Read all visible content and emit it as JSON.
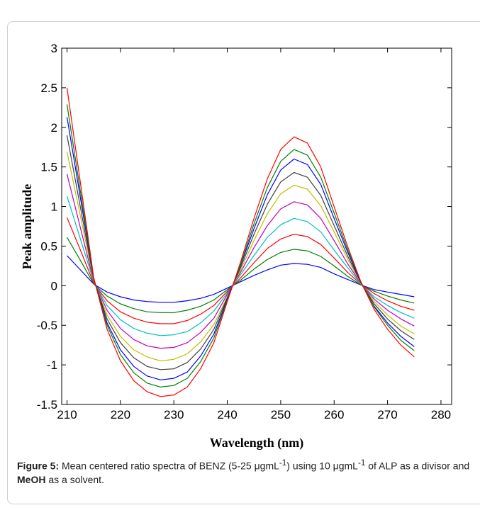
{
  "chart_data": {
    "type": "line",
    "x_label": "Wavelength (nm)",
    "y_label": "Peak amplitude",
    "x": [
      210,
      212.5,
      215,
      217.5,
      220,
      222.5,
      225,
      227.5,
      230,
      232.5,
      235,
      237.5,
      240,
      242.5,
      245,
      247.5,
      250,
      252.5,
      255,
      257.5,
      260,
      262.5,
      265,
      267.5,
      270,
      272.5,
      275
    ],
    "xlim": [
      209,
      282
    ],
    "xticks": [
      210,
      220,
      230,
      240,
      250,
      260,
      270,
      280
    ],
    "ylim": [
      -1.5,
      3
    ],
    "yticks": [
      -1.5,
      -1,
      -0.5,
      0,
      0.5,
      1,
      1.5,
      2,
      2.5,
      3
    ],
    "series": [
      {
        "color": "#0000ff",
        "values": [
          0.38,
          0.2,
          0.02,
          -0.08,
          -0.14,
          -0.18,
          -0.2,
          -0.21,
          -0.21,
          -0.19,
          -0.16,
          -0.11,
          -0.03,
          0.05,
          0.13,
          0.2,
          0.26,
          0.28,
          0.27,
          0.23,
          0.15,
          0.08,
          0.01,
          -0.05,
          -0.08,
          -0.11,
          -0.14
        ]
      },
      {
        "color": "#008000",
        "values": [
          0.61,
          0.32,
          0.02,
          -0.13,
          -0.23,
          -0.29,
          -0.33,
          -0.34,
          -0.34,
          -0.31,
          -0.26,
          -0.18,
          -0.05,
          0.07,
          0.21,
          0.33,
          0.42,
          0.46,
          0.44,
          0.37,
          0.25,
          0.12,
          0.01,
          -0.07,
          -0.13,
          -0.18,
          -0.22
        ]
      },
      {
        "color": "#ff0000",
        "values": [
          0.86,
          0.45,
          0.03,
          -0.19,
          -0.33,
          -0.41,
          -0.46,
          -0.48,
          -0.48,
          -0.44,
          -0.36,
          -0.25,
          -0.07,
          0.1,
          0.29,
          0.47,
          0.59,
          0.65,
          0.62,
          0.52,
          0.35,
          0.17,
          0.02,
          -0.1,
          -0.19,
          -0.26,
          -0.31
        ]
      },
      {
        "color": "#00bfbf",
        "values": [
          1.13,
          0.59,
          0.05,
          -0.25,
          -0.43,
          -0.54,
          -0.6,
          -0.63,
          -0.62,
          -0.58,
          -0.47,
          -0.32,
          -0.09,
          0.14,
          0.38,
          0.61,
          0.77,
          0.85,
          0.81,
          0.68,
          0.45,
          0.23,
          0.02,
          -0.14,
          -0.25,
          -0.34,
          -0.41
        ]
      },
      {
        "color": "#bf00bf",
        "values": [
          1.41,
          0.73,
          0.06,
          -0.31,
          -0.54,
          -0.68,
          -0.76,
          -0.79,
          -0.78,
          -0.72,
          -0.59,
          -0.41,
          -0.11,
          0.17,
          0.48,
          0.76,
          0.97,
          1.06,
          1.02,
          0.85,
          0.57,
          0.28,
          0.03,
          -0.17,
          -0.31,
          -0.42,
          -0.51
        ]
      },
      {
        "color": "#bfbf00",
        "values": [
          1.69,
          0.88,
          0.07,
          -0.37,
          -0.64,
          -0.81,
          -0.9,
          -0.95,
          -0.93,
          -0.86,
          -0.71,
          -0.49,
          -0.14,
          0.2,
          0.57,
          0.91,
          1.16,
          1.27,
          1.22,
          1.01,
          0.68,
          0.34,
          0.03,
          -0.2,
          -0.37,
          -0.51,
          -0.61
        ]
      },
      {
        "color": "#404040",
        "values": [
          1.9,
          0.99,
          0.08,
          -0.42,
          -0.72,
          -0.91,
          -1.02,
          -1.06,
          -1.05,
          -0.97,
          -0.8,
          -0.55,
          -0.15,
          0.23,
          0.65,
          1.03,
          1.31,
          1.43,
          1.37,
          1.14,
          0.76,
          0.38,
          0.04,
          -0.23,
          -0.42,
          -0.57,
          -0.68
        ]
      },
      {
        "color": "#0000ff",
        "values": [
          2.13,
          1.11,
          0.09,
          -0.47,
          -0.81,
          -1.02,
          -1.14,
          -1.19,
          -1.17,
          -1.09,
          -0.89,
          -0.61,
          -0.17,
          0.26,
          0.72,
          1.15,
          1.46,
          1.6,
          1.53,
          1.28,
          0.85,
          0.43,
          0.04,
          -0.26,
          -0.47,
          -0.64,
          -0.77
        ]
      },
      {
        "color": "#008000",
        "values": [
          2.29,
          1.19,
          0.09,
          -0.5,
          -0.87,
          -1.1,
          -1.23,
          -1.28,
          -1.26,
          -1.17,
          -0.96,
          -0.66,
          -0.18,
          0.27,
          0.78,
          1.24,
          1.57,
          1.72,
          1.65,
          1.37,
          0.92,
          0.46,
          0.05,
          -0.27,
          -0.5,
          -0.69,
          -0.82
        ]
      },
      {
        "color": "#ff0000",
        "values": [
          2.5,
          1.3,
          0.1,
          -0.55,
          -0.95,
          -1.2,
          -1.34,
          -1.4,
          -1.38,
          -1.28,
          -1.05,
          -0.72,
          -0.2,
          0.3,
          0.85,
          1.35,
          1.72,
          1.88,
          1.8,
          1.5,
          1.0,
          0.5,
          0.05,
          -0.3,
          -0.55,
          -0.75,
          -0.9
        ]
      }
    ]
  },
  "caption": {
    "label": "Figure 5:",
    "text1": " Mean centered ratio spectra of BENZ (5-25 μgmL",
    "sup1": "-1",
    "text2": ") using 10 μgmL",
    "sup2": "-1",
    "text3": " of ALP as a divisor and ",
    "bold": "MeOH",
    "text4": " as a solvent."
  }
}
